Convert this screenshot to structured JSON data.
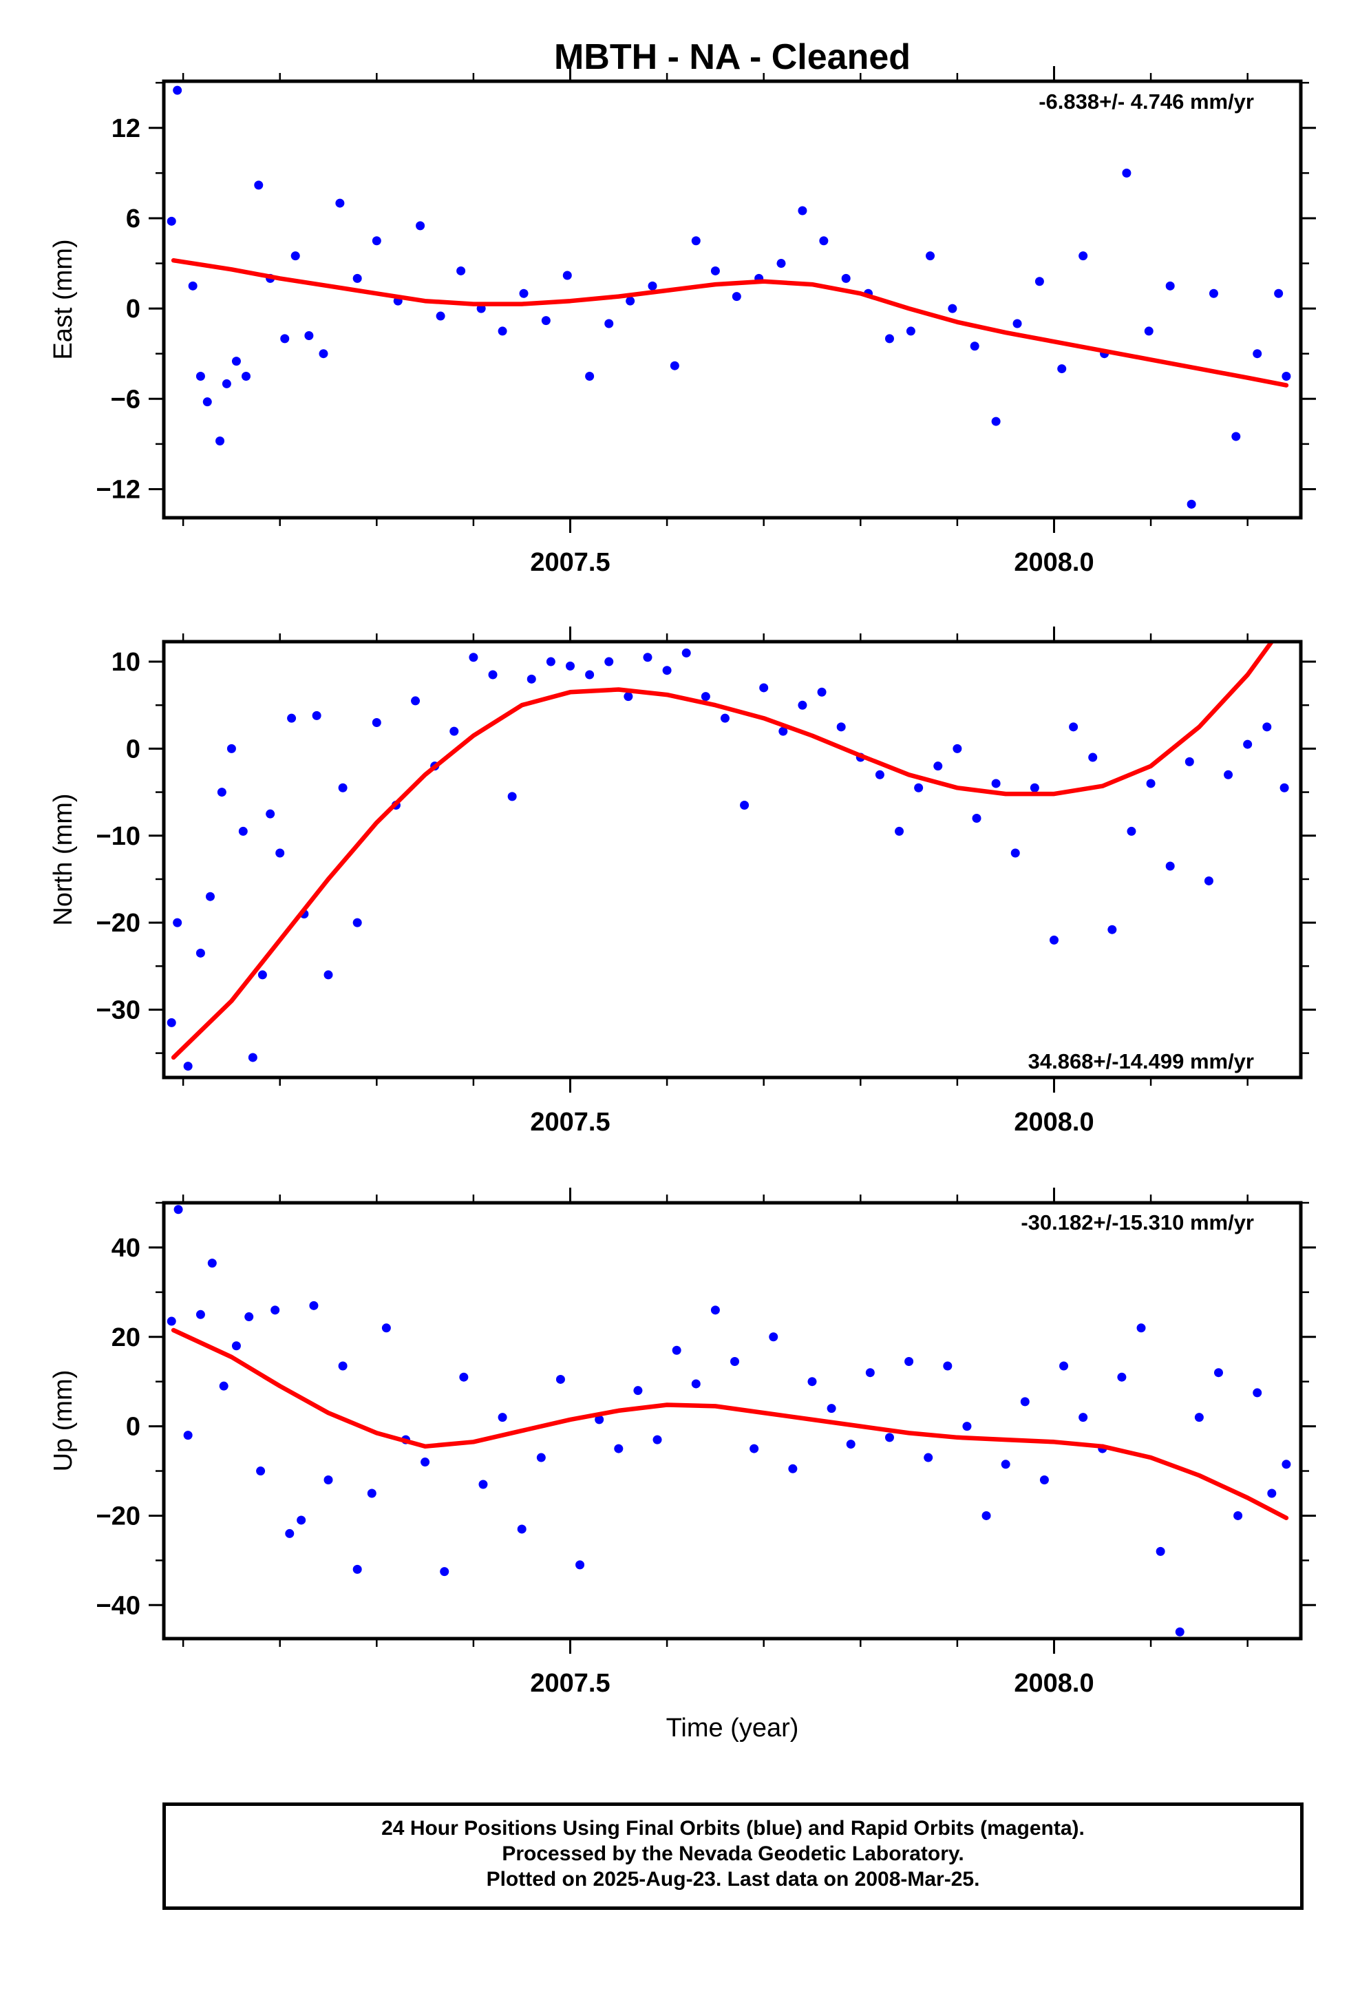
{
  "footer": {
    "line1": "24 Hour Positions Using Final Orbits (blue) and Rapid Orbits (magenta).",
    "line2": "Processed by the Nevada Geodetic Laboratory.",
    "line3": "Plotted on 2025-Aug-23. Last data on 2008-Mar-25."
  },
  "chart_data": [
    {
      "type": "scatter",
      "title": "MBTH  - NA - Cleaned",
      "ylabel": "East (mm)",
      "xlabel": "",
      "annotation": "-6.838+/- 4.746 mm/yr",
      "xlim": [
        2007.08,
        2008.255
      ],
      "ylim": [
        -13.9,
        15.1
      ],
      "xticks": [
        2007.5,
        2008.0
      ],
      "xtick_labels": [
        "2007.5",
        "2008.0"
      ],
      "yticks": [
        -12,
        -6,
        0,
        6,
        12
      ],
      "ytick_labels": [
        "−12",
        "−6",
        "0",
        "6",
        "12"
      ],
      "colors": {
        "points": "#0000ff",
        "fit": "#ff0000"
      },
      "series": [
        {
          "kind": "points",
          "x": [
            2007.088,
            2007.094,
            2007.11,
            2007.118,
            2007.125,
            2007.138,
            2007.145,
            2007.155,
            2007.165,
            2007.178,
            2007.19,
            2007.205,
            2007.216,
            2007.23,
            2007.245,
            2007.262,
            2007.28,
            2007.3,
            2007.322,
            2007.345,
            2007.366,
            2007.387,
            2007.408,
            2007.43,
            2007.452,
            2007.475,
            2007.497,
            2007.52,
            2007.54,
            2007.562,
            2007.585,
            2007.608,
            2007.63,
            2007.65,
            2007.672,
            2007.695,
            2007.718,
            2007.74,
            2007.762,
            2007.785,
            2007.808,
            2007.83,
            2007.852,
            2007.872,
            2007.895,
            2007.918,
            2007.94,
            2007.962,
            2007.985,
            2008.008,
            2008.03,
            2008.052,
            2008.075,
            2008.098,
            2008.12,
            2008.142,
            2008.165,
            2008.188,
            2008.21,
            2008.232,
            2008.24
          ],
          "y": [
            5.8,
            14.5,
            1.5,
            -4.5,
            -6.2,
            -8.8,
            -5.0,
            -3.5,
            -4.5,
            8.2,
            2.0,
            -2.0,
            3.5,
            -1.8,
            -3.0,
            7.0,
            2.0,
            4.5,
            0.5,
            5.5,
            -0.5,
            2.5,
            0.0,
            -1.5,
            1.0,
            -0.8,
            2.2,
            -4.5,
            -1.0,
            0.5,
            1.5,
            -3.8,
            4.5,
            2.5,
            0.8,
            2.0,
            3.0,
            6.5,
            4.5,
            2.0,
            1.0,
            -2.0,
            -1.5,
            3.5,
            0.0,
            -2.5,
            -7.5,
            -1.0,
            1.8,
            -4.0,
            3.5,
            -3.0,
            9.0,
            -1.5,
            1.5,
            -13.0,
            1.0,
            -8.5,
            -3.0,
            1.0,
            -4.5
          ]
        },
        {
          "kind": "fit",
          "x": [
            2007.09,
            2007.15,
            2007.2,
            2007.25,
            2007.3,
            2007.35,
            2007.4,
            2007.45,
            2007.5,
            2007.55,
            2007.6,
            2007.65,
            2007.7,
            2007.75,
            2007.8,
            2007.85,
            2007.9,
            2007.95,
            2008.0,
            2008.05,
            2008.1,
            2008.15,
            2008.2,
            2008.24
          ],
          "y": [
            3.2,
            2.6,
            2.0,
            1.5,
            1.0,
            0.5,
            0.3,
            0.3,
            0.5,
            0.8,
            1.2,
            1.6,
            1.8,
            1.6,
            1.0,
            0.0,
            -0.9,
            -1.6,
            -2.2,
            -2.8,
            -3.4,
            -4.0,
            -4.6,
            -5.1
          ]
        }
      ]
    },
    {
      "type": "scatter",
      "title": "",
      "ylabel": "North (mm)",
      "xlabel": "",
      "annotation": "34.868+/-14.499 mm/yr",
      "xlim": [
        2007.08,
        2008.255
      ],
      "ylim": [
        -37.8,
        12.3
      ],
      "xticks": [
        2007.5,
        2008.0
      ],
      "xtick_labels": [
        "2007.5",
        "2008.0"
      ],
      "yticks": [
        -30,
        -20,
        -10,
        0,
        10
      ],
      "ytick_labels": [
        "−30",
        "−20",
        "−10",
        "0",
        "10"
      ],
      "colors": {
        "points": "#0000ff",
        "fit": "#ff0000"
      },
      "series": [
        {
          "kind": "points",
          "x": [
            2007.088,
            2007.094,
            2007.105,
            2007.118,
            2007.128,
            2007.14,
            2007.15,
            2007.162,
            2007.172,
            2007.182,
            2007.19,
            2007.2,
            2007.212,
            2007.225,
            2007.238,
            2007.25,
            2007.265,
            2007.28,
            2007.3,
            2007.32,
            2007.34,
            2007.36,
            2007.38,
            2007.4,
            2007.42,
            2007.44,
            2007.46,
            2007.48,
            2007.5,
            2007.52,
            2007.54,
            2007.56,
            2007.58,
            2007.6,
            2007.62,
            2007.64,
            2007.66,
            2007.68,
            2007.7,
            2007.72,
            2007.74,
            2007.76,
            2007.78,
            2007.8,
            2007.82,
            2007.84,
            2007.86,
            2007.88,
            2007.9,
            2007.92,
            2007.94,
            2007.96,
            2007.98,
            2008.0,
            2008.02,
            2008.04,
            2008.06,
            2008.08,
            2008.1,
            2008.12,
            2008.14,
            2008.16,
            2008.18,
            2008.2,
            2008.22,
            2008.238
          ],
          "y": [
            -31.5,
            -20.0,
            -36.5,
            -23.5,
            -17.0,
            -5.0,
            0.0,
            -9.5,
            -35.5,
            -26.0,
            -7.5,
            -12.0,
            3.5,
            -19.0,
            3.8,
            -26.0,
            -4.5,
            -20.0,
            3.0,
            -6.5,
            5.5,
            -2.0,
            2.0,
            10.5,
            8.5,
            -5.5,
            8.0,
            10.0,
            9.5,
            8.5,
            10.0,
            6.0,
            10.5,
            9.0,
            11.0,
            6.0,
            3.5,
            -6.5,
            7.0,
            2.0,
            5.0,
            6.5,
            2.5,
            -1.0,
            -3.0,
            -9.5,
            -4.5,
            -2.0,
            0.0,
            -8.0,
            -4.0,
            -12.0,
            -4.5,
            -22.0,
            2.5,
            -1.0,
            -20.8,
            -9.5,
            -4.0,
            -13.5,
            -1.5,
            -15.2,
            -3.0,
            0.5,
            2.5,
            -4.5
          ]
        },
        {
          "kind": "fit",
          "x": [
            2007.09,
            2007.15,
            2007.2,
            2007.25,
            2007.3,
            2007.35,
            2007.4,
            2007.45,
            2007.5,
            2007.55,
            2007.6,
            2007.65,
            2007.7,
            2007.75,
            2007.8,
            2007.85,
            2007.9,
            2007.95,
            2008.0,
            2008.05,
            2008.1,
            2008.15,
            2008.2,
            2008.225
          ],
          "y": [
            -35.5,
            -29.0,
            -22.0,
            -15.0,
            -8.5,
            -3.0,
            1.5,
            5.0,
            6.5,
            6.8,
            6.2,
            5.0,
            3.5,
            1.5,
            -0.8,
            -3.0,
            -4.5,
            -5.2,
            -5.2,
            -4.3,
            -2.0,
            2.5,
            8.5,
            12.3
          ]
        }
      ]
    },
    {
      "type": "scatter",
      "title": "",
      "ylabel": "Up (mm)",
      "xlabel": "Time (year)",
      "annotation": "-30.182+/-15.310 mm/yr",
      "xlim": [
        2007.08,
        2008.255
      ],
      "ylim": [
        -47.5,
        50.0
      ],
      "xticks": [
        2007.5,
        2008.0
      ],
      "xtick_labels": [
        "2007.5",
        "2008.0"
      ],
      "yticks": [
        -40,
        -20,
        0,
        20,
        40
      ],
      "ytick_labels": [
        "−40",
        "−20",
        "0",
        "20",
        "40"
      ],
      "colors": {
        "points": "#0000ff",
        "fit": "#ff0000"
      },
      "series": [
        {
          "kind": "points",
          "x": [
            2007.088,
            2007.095,
            2007.105,
            2007.118,
            2007.13,
            2007.142,
            2007.155,
            2007.168,
            2007.18,
            2007.195,
            2007.21,
            2007.222,
            2007.235,
            2007.25,
            2007.265,
            2007.28,
            2007.295,
            2007.31,
            2007.33,
            2007.35,
            2007.37,
            2007.39,
            2007.41,
            2007.43,
            2007.45,
            2007.47,
            2007.49,
            2007.51,
            2007.53,
            2007.55,
            2007.57,
            2007.59,
            2007.61,
            2007.63,
            2007.65,
            2007.67,
            2007.69,
            2007.71,
            2007.73,
            2007.75,
            2007.77,
            2007.79,
            2007.81,
            2007.83,
            2007.85,
            2007.87,
            2007.89,
            2007.91,
            2007.93,
            2007.95,
            2007.97,
            2007.99,
            2008.01,
            2008.03,
            2008.05,
            2008.07,
            2008.09,
            2008.11,
            2008.13,
            2008.15,
            2008.17,
            2008.19,
            2008.21,
            2008.225,
            2008.24
          ],
          "y": [
            23.5,
            48.5,
            -2.0,
            25.0,
            36.5,
            9.0,
            18.0,
            24.5,
            -10.0,
            26.0,
            -24.0,
            -21.0,
            27.0,
            -12.0,
            13.5,
            -32.0,
            -15.0,
            22.0,
            -3.0,
            -8.0,
            -32.5,
            11.0,
            -13.0,
            2.0,
            -23.0,
            -7.0,
            10.5,
            -31.0,
            1.5,
            -5.0,
            8.0,
            -3.0,
            17.0,
            9.5,
            26.0,
            14.5,
            -5.0,
            20.0,
            -9.5,
            10.0,
            4.0,
            -4.0,
            12.0,
            -2.5,
            14.5,
            -7.0,
            13.5,
            0.0,
            -20.0,
            -8.5,
            5.5,
            -12.0,
            13.5,
            2.0,
            -5.0,
            11.0,
            22.0,
            -28.0,
            -46.0,
            2.0,
            12.0,
            -20.0,
            7.5,
            -15.0,
            -8.5
          ]
        },
        {
          "kind": "fit",
          "x": [
            2007.09,
            2007.15,
            2007.2,
            2007.25,
            2007.3,
            2007.35,
            2007.4,
            2007.45,
            2007.5,
            2007.55,
            2007.6,
            2007.65,
            2007.7,
            2007.75,
            2007.8,
            2007.85,
            2007.9,
            2007.95,
            2008.0,
            2008.05,
            2008.1,
            2008.15,
            2008.2,
            2008.24
          ],
          "y": [
            21.5,
            15.5,
            9.0,
            3.0,
            -1.5,
            -4.5,
            -3.5,
            -1.0,
            1.5,
            3.5,
            4.8,
            4.5,
            3.0,
            1.5,
            0.0,
            -1.5,
            -2.5,
            -3.0,
            -3.5,
            -4.5,
            -7.0,
            -11.0,
            -16.0,
            -20.5
          ]
        }
      ]
    }
  ]
}
